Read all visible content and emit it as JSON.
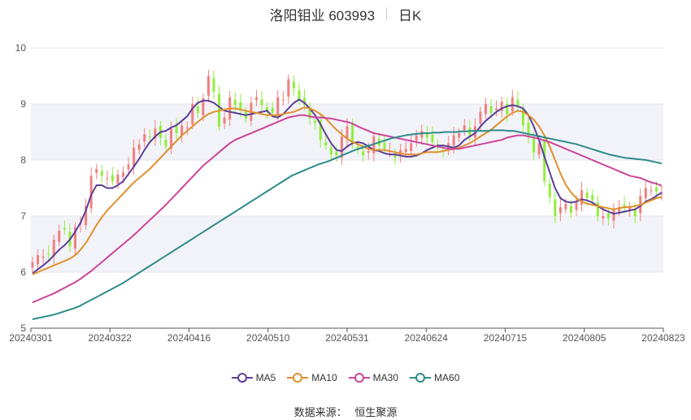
{
  "title": {
    "name": "洛阳钼业 603993",
    "period": "日K"
  },
  "source": {
    "label": "数据来源：",
    "name": "恒生聚源"
  },
  "chart_data": {
    "type": "candlestick",
    "ylim": [
      5,
      10
    ],
    "yticks": [
      5,
      6,
      7,
      8,
      9,
      10
    ],
    "xtick_labels": [
      "20240301",
      "20240322",
      "20240416",
      "20240510",
      "20240531",
      "20240624",
      "20240715",
      "20240805",
      "20240823"
    ],
    "colors": {
      "up": "#f08080",
      "down": "#90ee3a",
      "grid": "#e6e6ee",
      "band": "#f2f3f8"
    },
    "candles_close": [
      6.18,
      6.3,
      6.28,
      6.32,
      6.58,
      6.74,
      6.76,
      6.46,
      6.8,
      6.88,
      7.18,
      7.72,
      7.84,
      7.72,
      7.68,
      7.62,
      7.74,
      7.78,
      7.92,
      8.22,
      8.28,
      8.46,
      8.42,
      8.56,
      8.4,
      8.24,
      8.56,
      8.48,
      8.62,
      8.58,
      9.0,
      8.84,
      9.1,
      9.5,
      9.22,
      8.6,
      8.76,
      9.12,
      8.98,
      8.9,
      8.74,
      9.02,
      9.12,
      8.98,
      8.88,
      8.84,
      9.12,
      9.08,
      9.44,
      9.28,
      9.06,
      8.98,
      8.74,
      8.66,
      8.36,
      8.26,
      8.1,
      8.08,
      8.42,
      8.6,
      8.28,
      8.2,
      8.08,
      8.16,
      8.42,
      8.26,
      8.2,
      8.16,
      8.04,
      8.18,
      8.2,
      8.3,
      8.44,
      8.52,
      8.4,
      8.32,
      8.22,
      8.16,
      8.3,
      8.44,
      8.48,
      8.62,
      8.44,
      8.6,
      8.86,
      9.0,
      8.84,
      8.92,
      9.04,
      8.82,
      9.12,
      8.96,
      8.62,
      8.42,
      8.14,
      8.3,
      7.62,
      7.34,
      7.0,
      7.16,
      7.22,
      7.06,
      7.24,
      7.46,
      7.32,
      7.28,
      7.0,
      7.0,
      6.96,
      7.12,
      7.16,
      7.14,
      7.16,
      7.0,
      7.36,
      7.5,
      7.46,
      7.44,
      7.4
    ],
    "series": [
      {
        "name": "MA5",
        "color": "#5d3f9a",
        "values": [
          5.98,
          6.05,
          6.12,
          6.2,
          6.3,
          6.4,
          6.48,
          6.58,
          6.72,
          6.88,
          7.1,
          7.38,
          7.55,
          7.55,
          7.5,
          7.5,
          7.55,
          7.62,
          7.75,
          7.88,
          8.02,
          8.18,
          8.32,
          8.42,
          8.5,
          8.52,
          8.58,
          8.62,
          8.7,
          8.78,
          8.92,
          9.02,
          9.06,
          9.06,
          9.02,
          8.95,
          8.88,
          8.86,
          8.84,
          8.82,
          8.8,
          8.82,
          8.84,
          8.86,
          8.88,
          8.78,
          8.76,
          8.82,
          8.92,
          9.02,
          9.08,
          9.02,
          8.92,
          8.8,
          8.64,
          8.46,
          8.3,
          8.18,
          8.16,
          8.24,
          8.3,
          8.32,
          8.3,
          8.24,
          8.18,
          8.16,
          8.12,
          8.1,
          8.1,
          8.08,
          8.06,
          8.06,
          8.08,
          8.12,
          8.18,
          8.22,
          8.26,
          8.26,
          8.24,
          8.22,
          8.26,
          8.36,
          8.42,
          8.48,
          8.6,
          8.7,
          8.78,
          8.86,
          8.92,
          8.96,
          8.98,
          8.96,
          8.92,
          8.8,
          8.6,
          8.36,
          8.06,
          7.78,
          7.5,
          7.32,
          7.26,
          7.24,
          7.26,
          7.3,
          7.28,
          7.24,
          7.18,
          7.12,
          7.08,
          7.04,
          7.06,
          7.08,
          7.1,
          7.12,
          7.18,
          7.26,
          7.3,
          7.36,
          7.42
        ]
      },
      {
        "name": "MA10",
        "color": "#e0902e",
        "values": [
          5.96,
          6.0,
          6.04,
          6.08,
          6.12,
          6.16,
          6.2,
          6.24,
          6.3,
          6.4,
          6.52,
          6.68,
          6.84,
          6.98,
          7.1,
          7.2,
          7.3,
          7.4,
          7.5,
          7.6,
          7.68,
          7.76,
          7.84,
          7.94,
          8.04,
          8.14,
          8.24,
          8.34,
          8.44,
          8.52,
          8.6,
          8.68,
          8.76,
          8.82,
          8.86,
          8.88,
          8.9,
          8.92,
          8.92,
          8.9,
          8.88,
          8.86,
          8.84,
          8.82,
          8.8,
          8.8,
          8.8,
          8.82,
          8.84,
          8.86,
          8.9,
          8.94,
          8.92,
          8.88,
          8.82,
          8.74,
          8.64,
          8.54,
          8.46,
          8.38,
          8.32,
          8.28,
          8.24,
          8.2,
          8.18,
          8.18,
          8.18,
          8.16,
          8.14,
          8.12,
          8.1,
          8.1,
          8.1,
          8.12,
          8.14,
          8.14,
          8.14,
          8.16,
          8.18,
          8.2,
          8.22,
          8.26,
          8.3,
          8.36,
          8.42,
          8.48,
          8.54,
          8.62,
          8.7,
          8.78,
          8.84,
          8.88,
          8.86,
          8.8,
          8.72,
          8.6,
          8.44,
          8.24,
          8.0,
          7.76,
          7.56,
          7.42,
          7.32,
          7.26,
          7.22,
          7.2,
          7.18,
          7.16,
          7.14,
          7.12,
          7.14,
          7.16,
          7.16,
          7.18,
          7.2,
          7.24,
          7.28,
          7.32,
          7.34
        ]
      },
      {
        "name": "MA30",
        "color": "#cc4499",
        "values": [
          5.46,
          5.5,
          5.54,
          5.58,
          5.62,
          5.67,
          5.72,
          5.77,
          5.82,
          5.88,
          5.95,
          6.02,
          6.1,
          6.18,
          6.26,
          6.34,
          6.42,
          6.5,
          6.58,
          6.66,
          6.75,
          6.84,
          6.93,
          7.02,
          7.11,
          7.2,
          7.3,
          7.4,
          7.5,
          7.6,
          7.7,
          7.8,
          7.9,
          7.98,
          8.06,
          8.14,
          8.22,
          8.3,
          8.36,
          8.4,
          8.44,
          8.48,
          8.52,
          8.56,
          8.6,
          8.64,
          8.68,
          8.72,
          8.76,
          8.78,
          8.8,
          8.8,
          8.78,
          8.76,
          8.76,
          8.75,
          8.74,
          8.72,
          8.7,
          8.68,
          8.65,
          8.6,
          8.56,
          8.52,
          8.48,
          8.46,
          8.44,
          8.42,
          8.4,
          8.38,
          8.36,
          8.34,
          8.32,
          8.3,
          8.28,
          8.26,
          8.24,
          8.22,
          8.2,
          8.2,
          8.2,
          8.22,
          8.24,
          8.26,
          8.28,
          8.3,
          8.32,
          8.34,
          8.36,
          8.4,
          8.42,
          8.44,
          8.44,
          8.42,
          8.4,
          8.38,
          8.35,
          8.32,
          8.28,
          8.24,
          8.2,
          8.16,
          8.12,
          8.08,
          8.04,
          8.0,
          7.96,
          7.92,
          7.88,
          7.84,
          7.8,
          7.76,
          7.72,
          7.7,
          7.68,
          7.64,
          7.6,
          7.58,
          7.54
        ]
      },
      {
        "name": "MA60",
        "color": "#2e8b8b",
        "values": [
          5.16,
          5.18,
          5.2,
          5.22,
          5.24,
          5.27,
          5.3,
          5.33,
          5.36,
          5.4,
          5.45,
          5.5,
          5.55,
          5.6,
          5.65,
          5.7,
          5.75,
          5.8,
          5.86,
          5.92,
          5.98,
          6.04,
          6.1,
          6.16,
          6.22,
          6.28,
          6.34,
          6.4,
          6.46,
          6.52,
          6.58,
          6.64,
          6.7,
          6.76,
          6.82,
          6.88,
          6.94,
          7.0,
          7.06,
          7.12,
          7.18,
          7.24,
          7.3,
          7.36,
          7.42,
          7.48,
          7.54,
          7.6,
          7.66,
          7.72,
          7.76,
          7.8,
          7.84,
          7.88,
          7.92,
          7.95,
          7.98,
          8.02,
          8.06,
          8.1,
          8.14,
          8.18,
          8.21,
          8.24,
          8.27,
          8.3,
          8.33,
          8.36,
          8.39,
          8.41,
          8.43,
          8.45,
          8.46,
          8.47,
          8.48,
          8.48,
          8.49,
          8.49,
          8.5,
          8.5,
          8.5,
          8.51,
          8.51,
          8.52,
          8.52,
          8.52,
          8.52,
          8.53,
          8.53,
          8.53,
          8.52,
          8.52,
          8.5,
          8.48,
          8.46,
          8.44,
          8.42,
          8.4,
          8.38,
          8.36,
          8.34,
          8.32,
          8.3,
          8.28,
          8.25,
          8.22,
          8.19,
          8.16,
          8.13,
          8.1,
          8.08,
          8.06,
          8.04,
          8.03,
          8.02,
          8.01,
          8.0,
          7.98,
          7.96,
          7.94
        ]
      }
    ]
  }
}
